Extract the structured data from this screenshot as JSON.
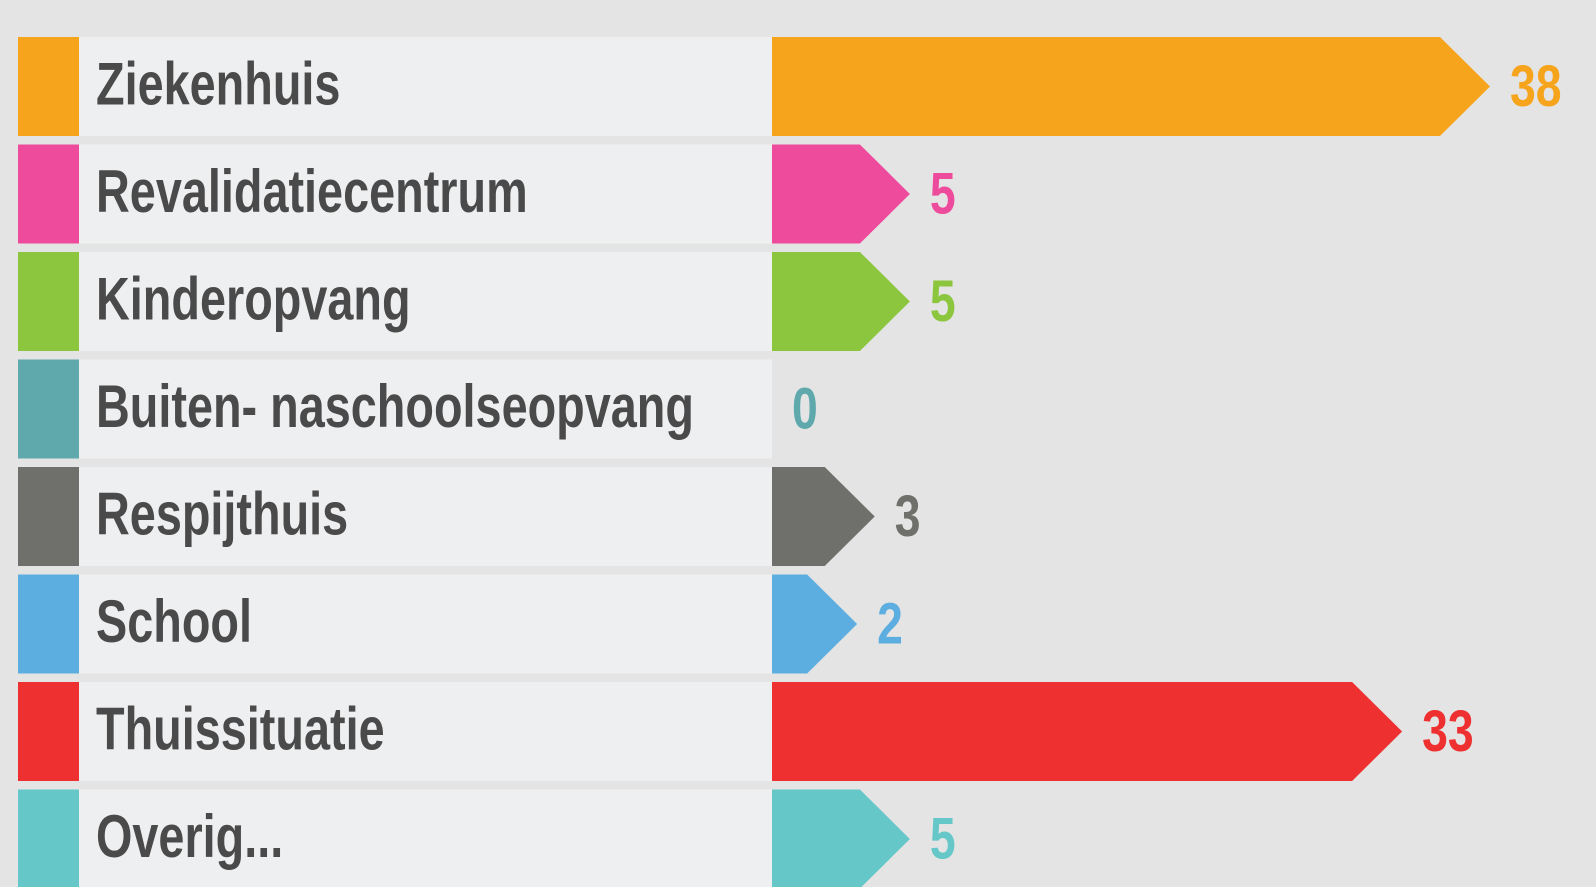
{
  "chart_data": {
    "type": "bar",
    "orientation": "horizontal",
    "categories": [
      "Ziekenhuis",
      "Revalidatiecentrum",
      "Kinderopvang",
      "Buiten- naschoolseopvang",
      "Respijthuis",
      "School",
      "Thuissituatie",
      "Overig..."
    ],
    "values": [
      38,
      5,
      5,
      0,
      3,
      2,
      33,
      5
    ],
    "colors": [
      "#f7a41d",
      "#ee4b9c",
      "#8cc63f",
      "#5fa9ad",
      "#6f706b",
      "#5daee0",
      "#ee3031",
      "#66c7c8"
    ]
  }
}
